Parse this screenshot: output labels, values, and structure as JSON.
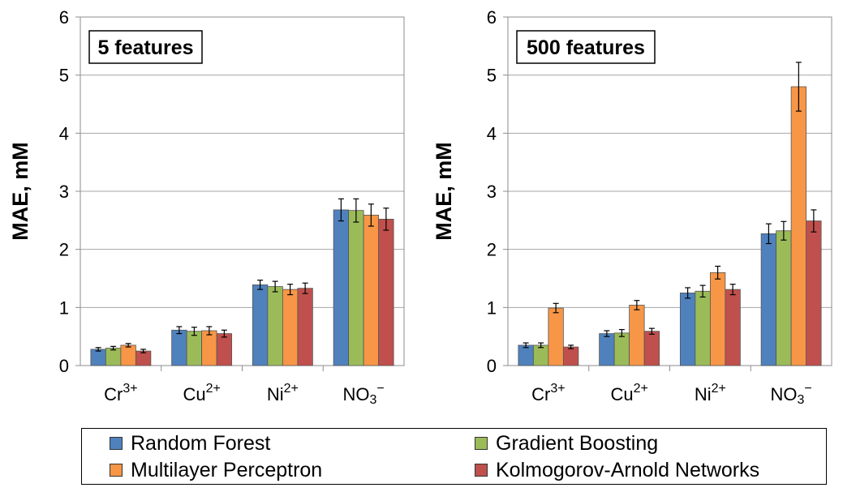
{
  "chart_data": [
    {
      "type": "bar",
      "annotation": "5 features",
      "ylabel": "MAE, mM",
      "ylim": [
        0,
        6
      ],
      "yticks": [
        0,
        1,
        2,
        3,
        4,
        5,
        6
      ],
      "grid": true,
      "categories": [
        {
          "base": "Cr",
          "sup": "3+",
          "sub": ""
        },
        {
          "base": "Cu",
          "sup": "2+",
          "sub": ""
        },
        {
          "base": "Ni",
          "sup": "2+",
          "sub": ""
        },
        {
          "base": "NO",
          "sup": "−",
          "sub": "3"
        }
      ],
      "series": [
        {
          "name": "Random Forest",
          "values": [
            0.28,
            0.61,
            1.39,
            2.68
          ],
          "errors": [
            0.03,
            0.06,
            0.08,
            0.19
          ]
        },
        {
          "name": "Gradient Boosting",
          "values": [
            0.3,
            0.59,
            1.36,
            2.67
          ],
          "errors": [
            0.03,
            0.07,
            0.09,
            0.2
          ]
        },
        {
          "name": "Multilayer Perceptron",
          "values": [
            0.35,
            0.6,
            1.31,
            2.59
          ],
          "errors": [
            0.03,
            0.07,
            0.09,
            0.19
          ]
        },
        {
          "name": "Kolmogorov-Arnold Networks",
          "values": [
            0.25,
            0.55,
            1.33,
            2.52
          ],
          "errors": [
            0.03,
            0.06,
            0.09,
            0.19
          ]
        }
      ]
    },
    {
      "type": "bar",
      "annotation": "500 features",
      "ylabel": "MAE, mM",
      "ylim": [
        0,
        6
      ],
      "yticks": [
        0,
        1,
        2,
        3,
        4,
        5,
        6
      ],
      "grid": true,
      "categories": [
        {
          "base": "Cr",
          "sup": "3+",
          "sub": ""
        },
        {
          "base": "Cu",
          "sup": "2+",
          "sub": ""
        },
        {
          "base": "Ni",
          "sup": "2+",
          "sub": ""
        },
        {
          "base": "NO",
          "sup": "−",
          "sub": "3"
        }
      ],
      "series": [
        {
          "name": "Random Forest",
          "values": [
            0.35,
            0.55,
            1.25,
            2.27
          ],
          "errors": [
            0.04,
            0.05,
            0.09,
            0.17
          ]
        },
        {
          "name": "Gradient Boosting",
          "values": [
            0.35,
            0.56,
            1.28,
            2.32
          ],
          "errors": [
            0.04,
            0.06,
            0.1,
            0.16
          ]
        },
        {
          "name": "Multilayer Perceptron",
          "values": [
            0.99,
            1.04,
            1.6,
            4.8
          ],
          "errors": [
            0.08,
            0.08,
            0.11,
            0.42
          ]
        },
        {
          "name": "Kolmogorov-Arnold Networks",
          "values": [
            0.32,
            0.59,
            1.31,
            2.49
          ],
          "errors": [
            0.03,
            0.05,
            0.09,
            0.19
          ]
        }
      ]
    }
  ],
  "legend": {
    "placement": "bottom",
    "items": [
      {
        "label": "Random Forest",
        "color": "#4F81BD"
      },
      {
        "label": "Gradient Boosting",
        "color": "#9BBB59"
      },
      {
        "label": "Multilayer Perceptron",
        "color": "#F79646"
      },
      {
        "label": "Kolmogorov-Arnold Networks",
        "color": "#C0504D"
      }
    ]
  }
}
